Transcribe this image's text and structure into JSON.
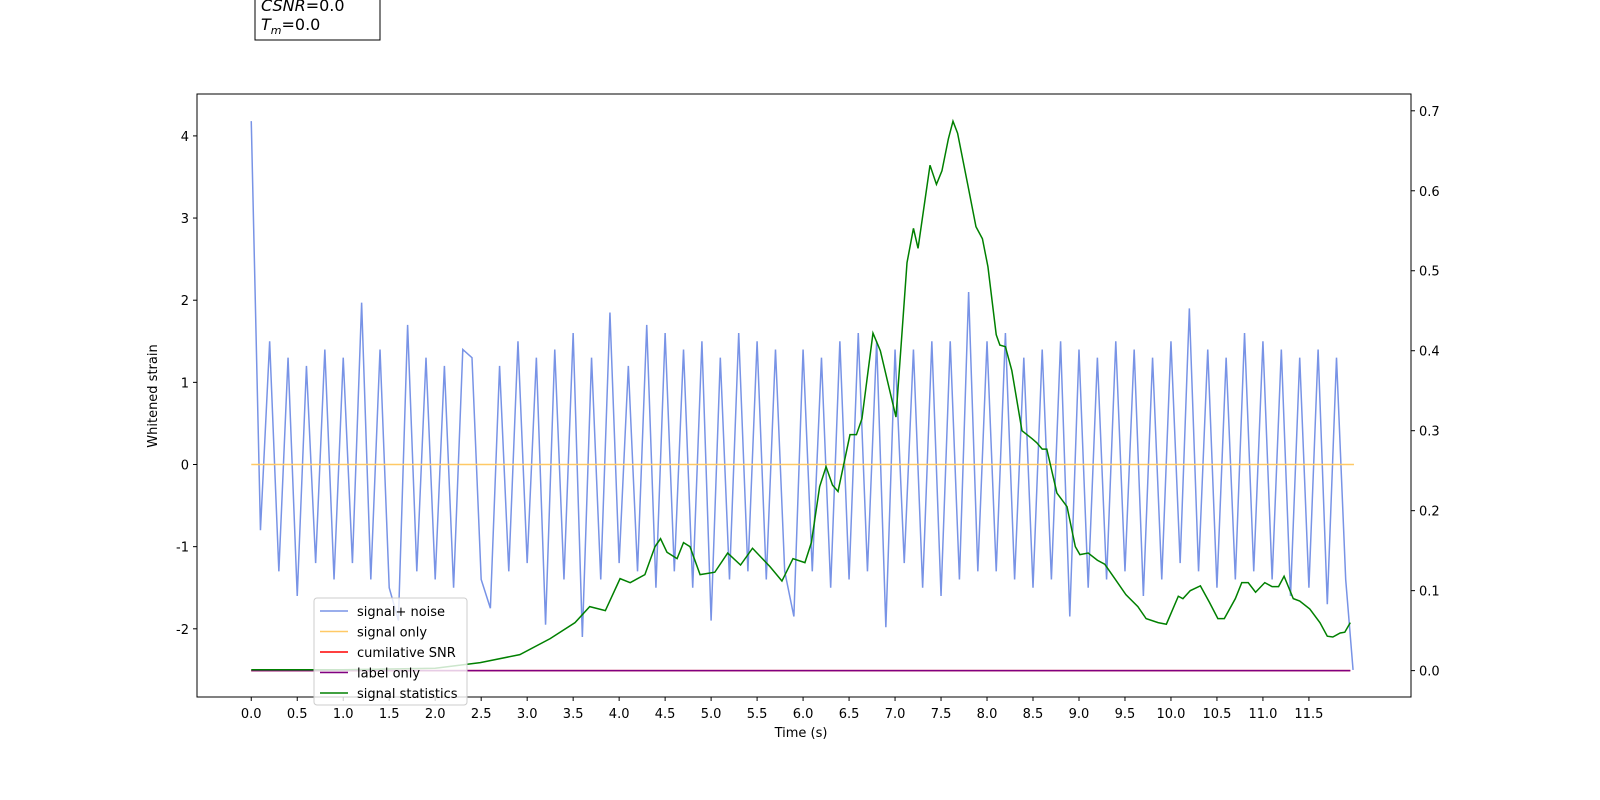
{
  "chart_data": {
    "type": "line",
    "xlabel": "Time (s)",
    "ylabel": "Whitened strain",
    "annotation": [
      {
        "italic": "CSNR",
        "text": "=0.0"
      },
      {
        "italic": "T",
        "sub": "m",
        "text": "=0.0"
      }
    ],
    "xlim": [
      -0.59,
      12.61
    ],
    "ylim": [
      -2.83,
      4.51
    ],
    "y2lim": [
      -0.033,
      0.721
    ],
    "xticks": [
      {
        "value": 0,
        "label": "0.0"
      },
      {
        "value": 0.5,
        "label": "0.5"
      },
      {
        "value": 1,
        "label": "1.0"
      },
      {
        "value": 1.5,
        "label": "1.5"
      },
      {
        "value": 2,
        "label": "2.0"
      },
      {
        "value": 2.5,
        "label": "2.5"
      },
      {
        "value": 3,
        "label": "3.0"
      },
      {
        "value": 3.5,
        "label": "3.5"
      },
      {
        "value": 4,
        "label": "4.0"
      },
      {
        "value": 4.5,
        "label": "4.5"
      },
      {
        "value": 5,
        "label": "5.0"
      },
      {
        "value": 5.5,
        "label": "5.5"
      },
      {
        "value": 6,
        "label": "6.0"
      },
      {
        "value": 6.5,
        "label": "6.5"
      },
      {
        "value": 7,
        "label": "7.0"
      },
      {
        "value": 7.5,
        "label": "7.5"
      },
      {
        "value": 8,
        "label": "8.0"
      },
      {
        "value": 8.5,
        "label": "8.5"
      },
      {
        "value": 9,
        "label": "9.0"
      },
      {
        "value": 9.5,
        "label": "9.5"
      },
      {
        "value": 10,
        "label": "10.0"
      },
      {
        "value": 10.5,
        "label": "10.5"
      },
      {
        "value": 11,
        "label": "11.0"
      },
      {
        "value": 11.5,
        "label": "11.5"
      }
    ],
    "yticks": [
      -2,
      -1,
      0,
      1,
      2,
      3,
      4
    ],
    "y2ticks": [
      {
        "value": 0,
        "label": "0.0"
      },
      {
        "value": 0.1,
        "label": "0.1"
      },
      {
        "value": 0.2,
        "label": "0.2"
      },
      {
        "value": 0.3,
        "label": "0.3"
      },
      {
        "value": 0.4,
        "label": "0.4"
      },
      {
        "value": 0.5,
        "label": "0.5"
      },
      {
        "value": 0.6,
        "label": "0.6"
      },
      {
        "value": 0.7,
        "label": "0.7"
      }
    ],
    "grid": false,
    "legend": "lower left",
    "series": [
      {
        "name": "signal+ noise",
        "color": "#7893e6",
        "axis": "y",
        "x": [
          0,
          0.1,
          0.2,
          0.3,
          0.4,
          0.5,
          0.6,
          0.7,
          0.8,
          0.9,
          1,
          1.1,
          1.2,
          1.3,
          1.4,
          1.5,
          1.6,
          1.7,
          1.8,
          1.9,
          2,
          2.1,
          2.2,
          2.3,
          2.4,
          2.5,
          2.6,
          2.7,
          2.8,
          2.9,
          3,
          3.1,
          3.2,
          3.3,
          3.4,
          3.5,
          3.6,
          3.7,
          3.8,
          3.9,
          4,
          4.1,
          4.2,
          4.3,
          4.4,
          4.5,
          4.6,
          4.7,
          4.8,
          4.9,
          5,
          5.1,
          5.2,
          5.3,
          5.4,
          5.5,
          5.6,
          5.7,
          5.8,
          5.9,
          6,
          6.1,
          6.2,
          6.3,
          6.4,
          6.5,
          6.6,
          6.7,
          6.8,
          6.9,
          7,
          7.1,
          7.2,
          7.3,
          7.4,
          7.5,
          7.6,
          7.7,
          7.8,
          7.9,
          8,
          8.1,
          8.2,
          8.3,
          8.4,
          8.5,
          8.6,
          8.7,
          8.8,
          8.9,
          9,
          9.1,
          9.2,
          9.3,
          9.4,
          9.5,
          9.6,
          9.7,
          9.8,
          9.9,
          10,
          10.1,
          10.2,
          10.3,
          10.4,
          10.5,
          10.6,
          10.7,
          10.8,
          10.9,
          11,
          11.1,
          11.2,
          11.3,
          11.4,
          11.5,
          11.6,
          11.7,
          11.8,
          11.9,
          11.98
        ],
        "values": [
          4.18,
          -0.8,
          1.5,
          -1.3,
          1.3,
          -1.6,
          1.2,
          -1.2,
          1.4,
          -1.4,
          1.3,
          -1.2,
          1.97,
          -1.4,
          1.4,
          -1.5,
          -1.9,
          1.7,
          -1.3,
          1.3,
          -1.4,
          1.2,
          -1.5,
          1.4,
          1.3,
          -1.4,
          -1.75,
          1.2,
          -1.3,
          1.5,
          -1.2,
          1.3,
          -1.95,
          1.4,
          -1.4,
          1.6,
          -2.1,
          1.3,
          -1.4,
          1.85,
          -1.2,
          1.2,
          -1.3,
          1.7,
          -1.5,
          1.6,
          -1.3,
          1.4,
          -1.5,
          1.5,
          -1.9,
          1.3,
          -1.4,
          1.6,
          -1.3,
          1.5,
          -1.4,
          1.4,
          -1.3,
          -1.85,
          1.4,
          -1.3,
          1.3,
          -1.5,
          1.5,
          -1.4,
          1.6,
          -1.3,
          1.5,
          -1.98,
          1.4,
          -1.2,
          1.4,
          -1.5,
          1.5,
          -1.6,
          1.5,
          -1.4,
          2.1,
          -1.3,
          1.5,
          -1.3,
          1.6,
          -1.4,
          1.3,
          -1.5,
          1.4,
          -1.4,
          1.5,
          -1.85,
          1.4,
          -1.5,
          1.3,
          -1.4,
          1.5,
          -1.3,
          1.4,
          -1.6,
          1.3,
          -1.4,
          1.5,
          -1.2,
          1.9,
          -1.3,
          1.4,
          -1.5,
          1.3,
          -1.4,
          1.6,
          -1.3,
          1.5,
          -1.4,
          1.4,
          -1.6,
          1.3,
          -1.5,
          1.4,
          -1.7,
          1.3,
          -1.4,
          -2.5
        ]
      },
      {
        "name": "signal only",
        "color": "#ffc966",
        "axis": "y",
        "x": [
          0,
          11.99
        ],
        "values": [
          0,
          0
        ]
      },
      {
        "name": "cumilative SNR",
        "color": "#ff0000",
        "axis": "y2",
        "x": [
          0,
          11.95
        ],
        "values": [
          0,
          0
        ]
      },
      {
        "name": "label only",
        "color": "#800080",
        "axis": "y2",
        "x": [
          0,
          11.95
        ],
        "values": [
          0,
          0
        ]
      },
      {
        "name": "signal statistics",
        "color": "#008000",
        "axis": "y2",
        "x": [
          0,
          1,
          2,
          2.49,
          2.92,
          3.25,
          3.52,
          3.68,
          3.85,
          4.01,
          4.12,
          4.28,
          4.39,
          4.45,
          4.52,
          4.63,
          4.7,
          4.77,
          4.88,
          5.04,
          5.18,
          5.32,
          5.45,
          5.64,
          5.77,
          5.89,
          6.02,
          6.09,
          6.18,
          6.25,
          6.32,
          6.38,
          6.51,
          6.58,
          6.64,
          6.76,
          6.84,
          7.01,
          7.13,
          7.2,
          7.25,
          7.34,
          7.38,
          7.45,
          7.51,
          7.58,
          7.63,
          7.68,
          7.79,
          7.88,
          7.95,
          8.01,
          8.1,
          8.14,
          8.2,
          8.27,
          8.38,
          8.49,
          8.54,
          8.6,
          8.65,
          8.76,
          8.87,
          8.96,
          9.01,
          9.1,
          9.2,
          9.28,
          9.39,
          9.51,
          9.64,
          9.73,
          9.86,
          9.95,
          10.08,
          10.13,
          10.21,
          10.32,
          10.42,
          10.51,
          10.58,
          10.7,
          10.77,
          10.84,
          10.92,
          11.02,
          11.1,
          11.17,
          11.23,
          11.33,
          11.4,
          11.51,
          11.62,
          11.7,
          11.76,
          11.84,
          11.89,
          11.95
        ],
        "values": [
          0.001,
          0.001,
          0.003,
          0.01,
          0.02,
          0.04,
          0.06,
          0.08,
          0.075,
          0.115,
          0.11,
          0.12,
          0.155,
          0.165,
          0.148,
          0.14,
          0.16,
          0.155,
          0.12,
          0.123,
          0.147,
          0.132,
          0.153,
          0.13,
          0.112,
          0.14,
          0.135,
          0.16,
          0.23,
          0.255,
          0.232,
          0.224,
          0.295,
          0.295,
          0.315,
          0.422,
          0.4,
          0.317,
          0.51,
          0.553,
          0.528,
          0.6,
          0.632,
          0.608,
          0.625,
          0.665,
          0.687,
          0.672,
          0.608,
          0.555,
          0.54,
          0.505,
          0.42,
          0.407,
          0.405,
          0.375,
          0.3,
          0.29,
          0.285,
          0.277,
          0.277,
          0.222,
          0.205,
          0.155,
          0.145,
          0.147,
          0.138,
          0.133,
          0.115,
          0.095,
          0.08,
          0.065,
          0.06,
          0.058,
          0.093,
          0.09,
          0.1,
          0.106,
          0.085,
          0.065,
          0.065,
          0.09,
          0.11,
          0.11,
          0.098,
          0.11,
          0.105,
          0.105,
          0.118,
          0.09,
          0.087,
          0.077,
          0.06,
          0.043,
          0.042,
          0.047,
          0.048,
          0.06
        ]
      }
    ]
  }
}
